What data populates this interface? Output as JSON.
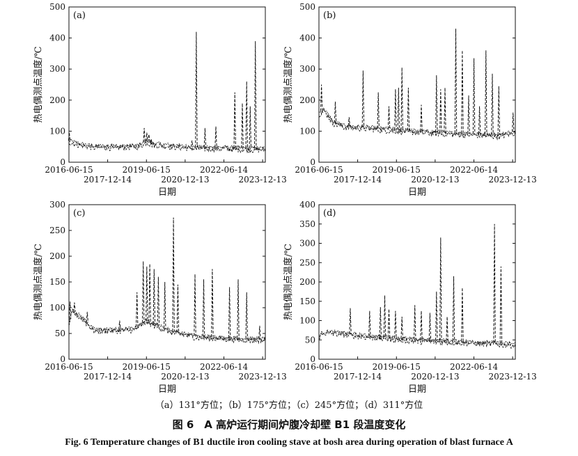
{
  "figure": {
    "subcaption": "（a）131°方位；（b）175°方位；（c）245°方位；（d）311°方位",
    "caption_zh": "图 6　A 高炉运行期间炉腹冷却壁 B1 段温度变化",
    "caption_en": "Fig. 6    Temperature changes of B1 ductile iron cooling stave at bosh area during operation of blast furnace A"
  },
  "chart_data": [
    {
      "type": "line",
      "panel": "(a)",
      "xlabel": "日期",
      "ylabel": "热电偶测点温度/℃",
      "x_range": [
        "2016-06-15",
        "2024-01-20"
      ],
      "xticks_upper": [
        "2016-06-15",
        "2019-06-15",
        "2022-06-14"
      ],
      "xticks_lower": [
        "2017-12-14",
        "2020-12-13",
        "2023-12-13"
      ],
      "ylim": [
        0,
        500
      ],
      "yticks": [
        0,
        100,
        200,
        300,
        400,
        500
      ],
      "baseline": [
        [
          "2016-06-15",
          70
        ],
        [
          "2016-10-01",
          62
        ],
        [
          "2017-06-01",
          52
        ],
        [
          "2018-06-01",
          52
        ],
        [
          "2019-03-01",
          55
        ],
        [
          "2019-06-15",
          68
        ],
        [
          "2019-10-01",
          60
        ],
        [
          "2020-06-01",
          55
        ],
        [
          "2021-06-01",
          48
        ],
        [
          "2022-06-14",
          48
        ],
        [
          "2023-06-01",
          45
        ],
        [
          "2024-01-20",
          45
        ]
      ],
      "spikes": [
        [
          "2016-06-20",
          95
        ],
        [
          "2019-05-15",
          110
        ],
        [
          "2019-06-20",
          95
        ],
        [
          "2019-07-20",
          90
        ],
        [
          "2019-08-20",
          75
        ],
        [
          "2021-05-20",
          420
        ],
        [
          "2021-09-20",
          110
        ],
        [
          "2021-03-20",
          70
        ],
        [
          "2022-02-20",
          115
        ],
        [
          "2022-11-15",
          225
        ],
        [
          "2023-03-01",
          190
        ],
        [
          "2023-05-01",
          260
        ],
        [
          "2023-06-20",
          180
        ],
        [
          "2023-09-01",
          390
        ]
      ]
    },
    {
      "type": "line",
      "panel": "(b)",
      "xlabel": "日期",
      "ylabel": "热电偶测点温度/℃",
      "x_range": [
        "2016-06-15",
        "2024-01-20"
      ],
      "xticks_upper": [
        "2016-06-15",
        "2019-06-15",
        "2022-06-14"
      ],
      "xticks_lower": [
        "2017-12-14",
        "2020-12-13",
        "2023-12-13"
      ],
      "ylim": [
        0,
        500
      ],
      "yticks": [
        0,
        100,
        200,
        300,
        400,
        500
      ],
      "baseline": [
        [
          "2016-06-15",
          160
        ],
        [
          "2016-09-01",
          170
        ],
        [
          "2017-01-01",
          130
        ],
        [
          "2017-06-01",
          118
        ],
        [
          "2018-06-01",
          112
        ],
        [
          "2019-06-01",
          105
        ],
        [
          "2020-06-01",
          100
        ],
        [
          "2021-06-01",
          95
        ],
        [
          "2022-06-14",
          92
        ],
        [
          "2023-06-01",
          88
        ],
        [
          "2024-01-20",
          100
        ]
      ],
      "spikes": [
        [
          "2016-07-20",
          250
        ],
        [
          "2017-02-01",
          195
        ],
        [
          "2017-08-15",
          145
        ],
        [
          "2018-03-01",
          295
        ],
        [
          "2018-10-01",
          225
        ],
        [
          "2019-03-01",
          180
        ],
        [
          "2019-06-01",
          235
        ],
        [
          "2019-07-15",
          240
        ],
        [
          "2019-09-01",
          305
        ],
        [
          "2019-12-01",
          240
        ],
        [
          "2020-06-01",
          185
        ],
        [
          "2021-01-01",
          280
        ],
        [
          "2021-03-01",
          235
        ],
        [
          "2021-05-01",
          240
        ],
        [
          "2021-10-01",
          430
        ],
        [
          "2022-01-01",
          360
        ],
        [
          "2022-04-01",
          215
        ],
        [
          "2022-06-14",
          335
        ],
        [
          "2022-09-01",
          180
        ],
        [
          "2022-12-01",
          360
        ],
        [
          "2023-03-01",
          285
        ],
        [
          "2023-06-01",
          245
        ],
        [
          "2023-12-20",
          160
        ]
      ]
    },
    {
      "type": "line",
      "panel": "(c)",
      "xlabel": "日期",
      "ylabel": "热电偶测点温度/℃",
      "x_range": [
        "2016-06-15",
        "2024-01-20"
      ],
      "xticks_upper": [
        "2016-06-15",
        "2019-06-15",
        "2022-06-14"
      ],
      "xticks_lower": [
        "2017-12-14",
        "2020-12-13",
        "2023-12-13"
      ],
      "ylim": [
        0,
        300
      ],
      "yticks": [
        0,
        50,
        100,
        150,
        200,
        250,
        300
      ],
      "baseline": [
        [
          "2016-06-15",
          70
        ],
        [
          "2016-08-01",
          95
        ],
        [
          "2017-01-01",
          80
        ],
        [
          "2017-06-01",
          58
        ],
        [
          "2018-06-01",
          58
        ],
        [
          "2019-01-01",
          60
        ],
        [
          "2019-06-15",
          75
        ],
        [
          "2020-06-01",
          55
        ],
        [
          "2021-06-01",
          45
        ],
        [
          "2022-06-14",
          42
        ],
        [
          "2023-06-01",
          40
        ],
        [
          "2024-01-20",
          40
        ]
      ],
      "spikes": [
        [
          "2016-07-01",
          112
        ],
        [
          "2016-09-01",
          110
        ],
        [
          "2017-03-01",
          92
        ],
        [
          "2018-06-01",
          75
        ],
        [
          "2019-02-01",
          130
        ],
        [
          "2019-05-01",
          190
        ],
        [
          "2019-06-20",
          180
        ],
        [
          "2019-08-01",
          185
        ],
        [
          "2019-10-01",
          175
        ],
        [
          "2019-12-01",
          160
        ],
        [
          "2020-03-01",
          150
        ],
        [
          "2020-07-01",
          275
        ],
        [
          "2020-09-01",
          145
        ],
        [
          "2021-05-01",
          165
        ],
        [
          "2021-09-01",
          155
        ],
        [
          "2022-01-01",
          175
        ],
        [
          "2022-09-01",
          140
        ],
        [
          "2023-01-01",
          155
        ],
        [
          "2023-05-01",
          130
        ],
        [
          "2023-11-01",
          65
        ]
      ]
    },
    {
      "type": "line",
      "panel": "(d)",
      "xlabel": "日期",
      "ylabel": "热电偶测点温度/℃",
      "x_range": [
        "2016-06-15",
        "2024-01-20"
      ],
      "xticks_upper": [
        "2016-06-15",
        "2019-06-15",
        "2022-06-14"
      ],
      "xticks_lower": [
        "2017-12-14",
        "2020-12-13",
        "2023-12-13"
      ],
      "ylim": [
        0,
        400
      ],
      "yticks": [
        0,
        50,
        100,
        150,
        200,
        250,
        300,
        350,
        400
      ],
      "baseline": [
        [
          "2016-06-15",
          62
        ],
        [
          "2016-09-01",
          72
        ],
        [
          "2017-06-01",
          68
        ],
        [
          "2018-06-01",
          60
        ],
        [
          "2019-06-15",
          55
        ],
        [
          "2020-06-01",
          50
        ],
        [
          "2021-06-01",
          48
        ],
        [
          "2022-06-14",
          45
        ],
        [
          "2023-06-01",
          42
        ],
        [
          "2024-01-20",
          40
        ]
      ],
      "spikes": [
        [
          "2017-09-01",
          132
        ],
        [
          "2018-06-01",
          125
        ],
        [
          "2018-11-01",
          135
        ],
        [
          "2019-01-01",
          165
        ],
        [
          "2019-03-01",
          130
        ],
        [
          "2019-06-01",
          125
        ],
        [
          "2019-09-01",
          110
        ],
        [
          "2020-03-01",
          140
        ],
        [
          "2020-06-01",
          125
        ],
        [
          "2020-10-01",
          120
        ],
        [
          "2021-01-01",
          175
        ],
        [
          "2021-03-01",
          315
        ],
        [
          "2021-06-01",
          110
        ],
        [
          "2021-09-01",
          215
        ],
        [
          "2022-01-01",
          185
        ],
        [
          "2023-04-01",
          350
        ],
        [
          "2023-07-01",
          240
        ]
      ]
    }
  ]
}
